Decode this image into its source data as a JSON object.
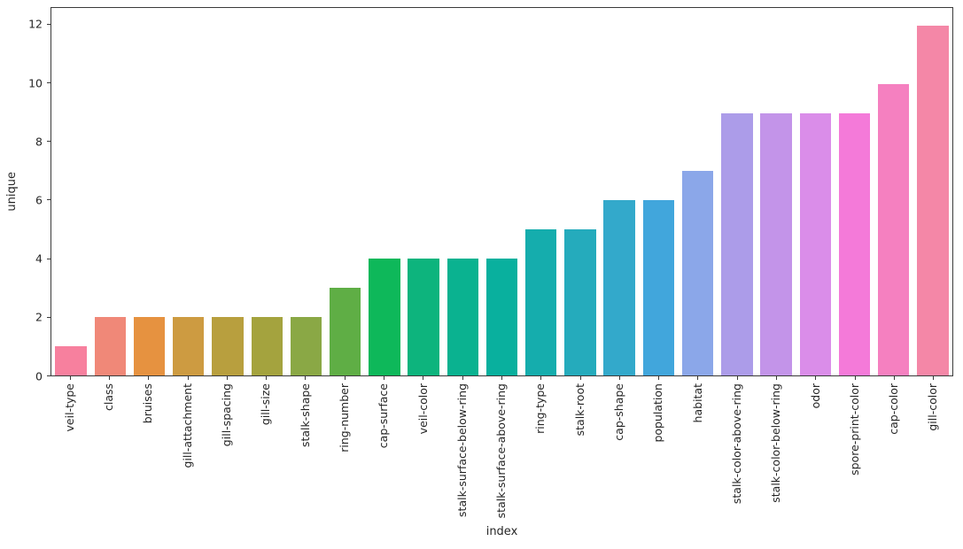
{
  "figure": {
    "background": "#ffffff",
    "spine_color": "#3a3a3a",
    "text_color": "#262626"
  },
  "chart_data": {
    "type": "bar",
    "title": "",
    "xlabel": "index",
    "ylabel": "unique",
    "ylim": [
      0,
      12.6
    ],
    "yticks": [
      0,
      2,
      4,
      6,
      8,
      10,
      12
    ],
    "grid": false,
    "legend_position": "none",
    "x_tick_rotation": 90,
    "categories": [
      "veil-type",
      "class",
      "bruises",
      "gill-attachment",
      "gill-spacing",
      "gill-size",
      "stalk-shape",
      "ring-number",
      "cap-surface",
      "veil-color",
      "stalk-surface-below-ring",
      "stalk-surface-above-ring",
      "ring-type",
      "stalk-root",
      "cap-shape",
      "population",
      "habitat",
      "stalk-color-above-ring",
      "stalk-color-below-ring",
      "odor",
      "spore-print-color",
      "cap-color",
      "gill-color"
    ],
    "values": [
      1,
      2,
      2,
      2,
      2,
      2,
      2,
      3,
      4,
      4,
      4,
      4,
      5,
      5,
      6,
      6,
      7,
      9,
      9,
      9,
      9,
      10,
      12
    ],
    "bar_colors": [
      "#f7809e",
      "#f08878",
      "#e69240",
      "#cd9b41",
      "#b89f3e",
      "#a4a33e",
      "#8aa845",
      "#5fae45",
      "#0eb85a",
      "#0db47d",
      "#0ab290",
      "#09b09e",
      "#15adad",
      "#25abbc",
      "#33a9cb",
      "#41a6dc",
      "#8ba7e9",
      "#ac9ce9",
      "#c394e9",
      "#da8de9",
      "#f47ad9",
      "#f580c0",
      "#f487a7"
    ]
  }
}
